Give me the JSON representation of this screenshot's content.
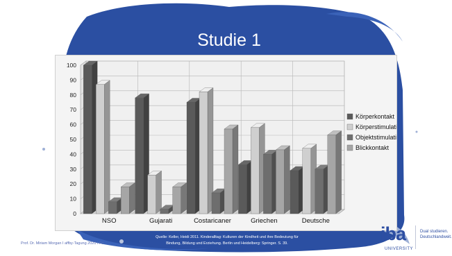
{
  "slide": {
    "title": "Studie 1",
    "footer_left": "Prof. Dr. Miriam Morgan I affby-Tagung 2020 I Fo",
    "source_line1": "Quelle: Keller, Heidi 2011. Kinderalltag: Kulturen der Kindheit und ihre Bedeutung für",
    "source_line2": "Bindung, Bildung und Erziehung. Berlin und Heidelberg: Springer. S. 39.",
    "logo_main": "iba",
    "logo_sub": "UNIVERSITY",
    "logo_tag1": "Dual studieren.",
    "logo_tag2": "Deutschlandweit.",
    "colors": {
      "splash": "#2b4fa2",
      "logo": "#2d4ea2"
    }
  },
  "chart_data": {
    "type": "bar",
    "categories": [
      "NSO",
      "Gujarati",
      "Costaricaner",
      "Griechen",
      "Deutsche"
    ],
    "series": [
      {
        "name": "Körperkontakt",
        "color": "#5a5a5a",
        "values": [
          100,
          78,
          75,
          33,
          29
        ]
      },
      {
        "name": "Körperstimulation",
        "color": "#cfcfcf",
        "values": [
          87,
          26,
          82,
          58,
          44
        ]
      },
      {
        "name": "Objektstimulation",
        "color": "#6e6e6e",
        "values": [
          8,
          3,
          14,
          40,
          30
        ]
      },
      {
        "name": "Blickkontakt",
        "color": "#a6a6a6",
        "values": [
          18,
          18,
          57,
          43,
          53
        ]
      }
    ],
    "yticks": [
      "0",
      "10",
      "20",
      "30",
      "40",
      "50",
      "60",
      "70",
      "80",
      "90",
      "100"
    ],
    "ylim": [
      0,
      100
    ],
    "grid": true,
    "legend_position": "right",
    "three_d": true
  }
}
